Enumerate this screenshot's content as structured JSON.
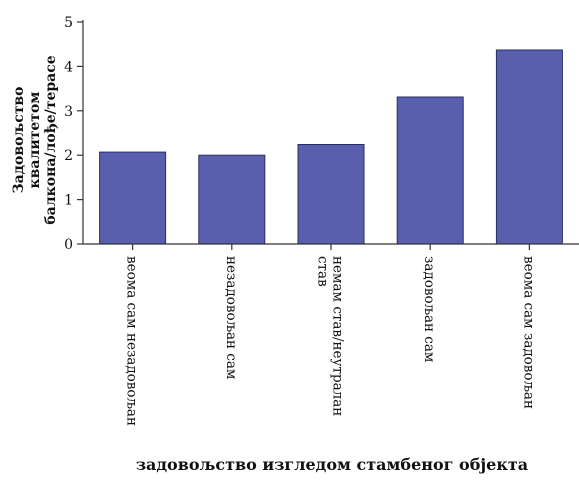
{
  "chart_data": {
    "type": "bar",
    "categories": [
      "веома сам незадовољан",
      "незадовољан сам",
      "немам став/неутралан став",
      "задовољан сам",
      "веома сам задовољан"
    ],
    "values": [
      2.07,
      2.0,
      2.24,
      3.31,
      4.37
    ],
    "ylim": [
      0,
      5
    ],
    "yticks": [
      0,
      1,
      2,
      3,
      4,
      5
    ],
    "title": "",
    "xlabel": "задовољство изгледом стамбеног објекта",
    "ylabel_lines": [
      "Задовољство",
      "квалитетом",
      "балкона/лође/терасе"
    ],
    "grid": false,
    "colors": {
      "bar_fill": "#5a5eae",
      "bar_stroke": "#2b2d5e",
      "axis": "#333333"
    }
  }
}
